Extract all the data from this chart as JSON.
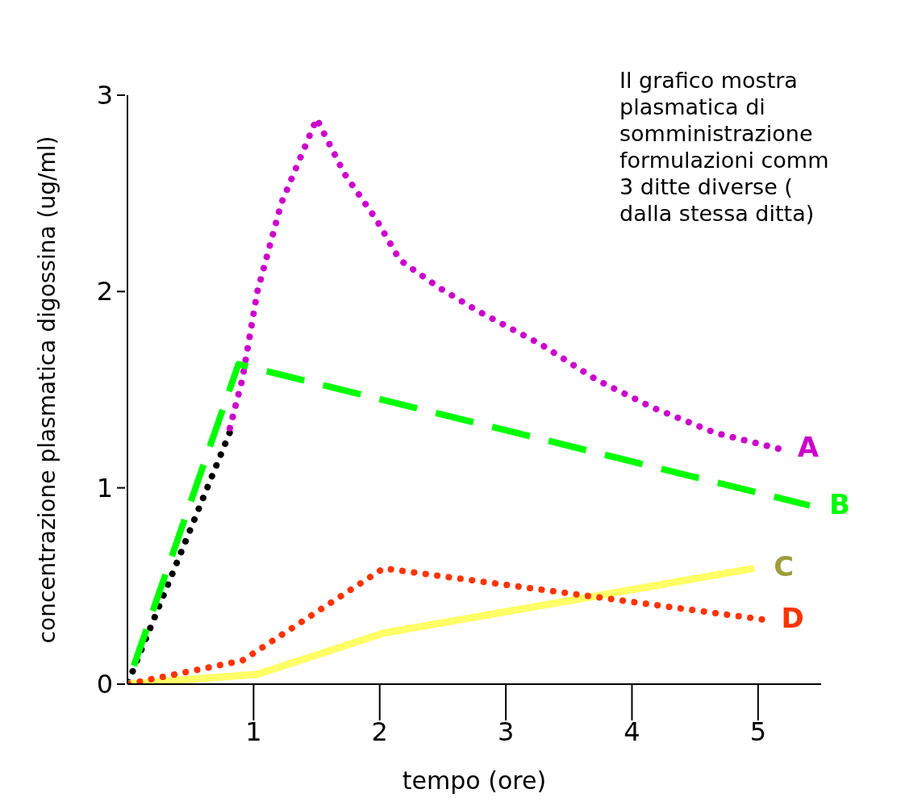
{
  "chart_data": {
    "type": "line",
    "xlabel": "tempo (ore)",
    "ylabel": "concentrazione plasmatica digossina (ug/ml)",
    "xlim": [
      0,
      5.5
    ],
    "xticks": [
      1,
      2,
      3,
      4,
      5
    ],
    "ylim": [
      0,
      3
    ],
    "yticks": [
      0,
      1,
      2,
      3
    ],
    "grid": false,
    "legend": false,
    "annotations": [
      "Il grafico mostra\nplasmatica di\nsomministrazione\nformulazioni comm\n3 ditte diverse (\ndalla stessa ditta)"
    ],
    "series": [
      {
        "type": "line",
        "color": "#000000",
        "line_style": "dotted",
        "x": [
          0,
          0.81
        ],
        "values": [
          0,
          1.28
        ]
      },
      {
        "name": "A",
        "type": "line",
        "color": "#cc00cc",
        "line_style": "dotted",
        "x": [
          0.81,
          0.91,
          1.03,
          1.22,
          1.5,
          1.72,
          1.97,
          2.16,
          2.47,
          2.78,
          3.28,
          3.72,
          4.16,
          4.66,
          5.16
        ],
        "values": [
          1.3,
          1.55,
          2.0,
          2.45,
          2.88,
          2.6,
          2.37,
          2.16,
          2.02,
          1.9,
          1.73,
          1.55,
          1.41,
          1.28,
          1.2
        ]
      },
      {
        "name": "B",
        "type": "line",
        "color": "#00ff00",
        "line_style": "dashed",
        "x": [
          0,
          0.88,
          5.41
        ],
        "values": [
          0,
          1.63,
          0.91
        ]
      },
      {
        "name": "C",
        "type": "line",
        "color": "#ffff66",
        "line_style": "solid",
        "x": [
          0,
          1.03,
          2.03,
          4.97
        ],
        "values": [
          0,
          0.05,
          0.26,
          0.59
        ]
      },
      {
        "name": "D",
        "type": "line",
        "color": "#ff3300",
        "line_style": "dotted",
        "x": [
          0,
          0.91,
          2.03,
          5.03
        ],
        "values": [
          0,
          0.12,
          0.59,
          0.33
        ]
      }
    ]
  }
}
